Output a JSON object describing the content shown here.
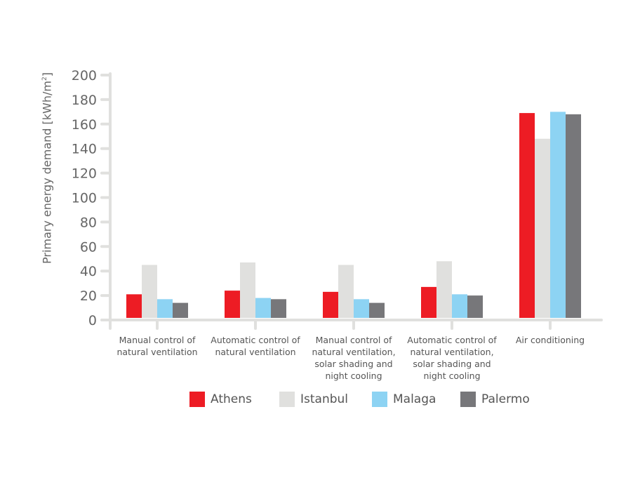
{
  "chart_data": {
    "type": "bar",
    "title": "",
    "xlabel": "",
    "ylabel": "Primary energy demand [kWh/m²]",
    "ylabel_main": "Primary energy demand [kWh/m",
    "ylabel_sup": "2",
    "ylabel_end": "]",
    "ylim": [
      0,
      200
    ],
    "yticks": [
      0,
      20,
      40,
      60,
      80,
      100,
      120,
      140,
      160,
      180,
      200
    ],
    "grid": false,
    "legend_placement": "bottom",
    "categories": [
      "Manual control of\nnatural ventilation",
      "Automatic control of\nnatural ventilation",
      "Manual control of\nnatural ventilation,\nsolar shading and\nnight cooling",
      "Automatic control of\nnatural ventilation,\nsolar shading and\nnight cooling",
      "Air conditioning"
    ],
    "series": [
      {
        "name": "Athens",
        "color": "#ed1c24",
        "values": [
          21,
          24,
          23,
          27,
          169
        ]
      },
      {
        "name": "Istanbul",
        "color": "#e0e0de",
        "values": [
          45,
          47,
          45,
          48,
          148
        ]
      },
      {
        "name": "Malaga",
        "color": "#8dd3f3",
        "values": [
          17,
          18,
          17,
          21,
          170
        ]
      },
      {
        "name": "Palermo",
        "color": "#77777a",
        "values": [
          14,
          17,
          14,
          20,
          168
        ]
      }
    ],
    "axis_color": "#e0e0de"
  }
}
